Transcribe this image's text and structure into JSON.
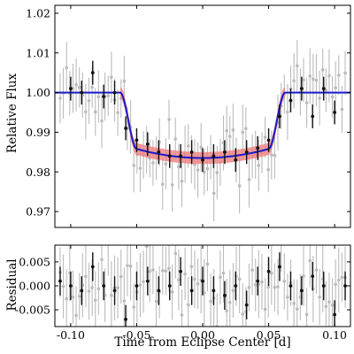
{
  "chart_data": [
    {
      "type": "line",
      "panel": "light-curve",
      "ylabel": "Relative Flux",
      "xlim": [
        -0.112,
        0.112
      ],
      "ylim": [
        0.966,
        1.022
      ],
      "yticks": [
        0.97,
        0.98,
        0.99,
        1.0,
        1.01,
        1.02
      ],
      "ytick_labels": [
        "0.97",
        "0.98",
        "0.99",
        "1.00",
        "1.01",
        "1.02"
      ],
      "transit_model": {
        "baseline": 1.0,
        "depth_center": 0.9835,
        "limb_rise": 0.0023,
        "t_full_half": 0.05,
        "t_total_half": 0.0625,
        "color": "#1a1acc",
        "band_color": "#f08080",
        "band_halfwidth": 0.0015
      },
      "binned_points": {
        "color": "#111111",
        "x": [
          -0.1,
          -0.0917,
          -0.0833,
          -0.075,
          -0.0667,
          -0.0583,
          -0.05,
          -0.0417,
          -0.0333,
          -0.025,
          -0.0167,
          -0.0083,
          0.0,
          0.0083,
          0.0167,
          0.025,
          0.0333,
          0.0417,
          0.05,
          0.0583,
          0.0667,
          0.075,
          0.0833,
          0.0917,
          0.1
        ],
        "y": [
          1.001,
          1.0,
          1.005,
          0.999,
          1.0,
          0.991,
          0.988,
          0.987,
          0.985,
          0.984,
          0.984,
          0.985,
          0.983,
          0.984,
          0.985,
          0.983,
          0.985,
          0.986,
          0.988,
          0.994,
          0.998,
          1.001,
          0.994,
          1.001,
          0.995
        ],
        "yerr": [
          0.003,
          0.003,
          0.003,
          0.003,
          0.003,
          0.003,
          0.003,
          0.003,
          0.003,
          0.003,
          0.003,
          0.003,
          0.003,
          0.003,
          0.003,
          0.003,
          0.003,
          0.003,
          0.003,
          0.003,
          0.003,
          0.003,
          0.003,
          0.003,
          0.003
        ]
      },
      "raw_points": {
        "color": "#bbbbbb",
        "x_start": -0.108,
        "x_end": 0.108,
        "count": 90,
        "yerr": 0.006,
        "scatter": 0.0045
      }
    },
    {
      "type": "line",
      "panel": "residual",
      "xlabel": "Time from Eclipse Center [d]",
      "ylabel": "Residual",
      "xlim": [
        -0.112,
        0.112
      ],
      "ylim": [
        -0.0085,
        0.0085
      ],
      "xticks": [
        -0.1,
        -0.05,
        0.0,
        0.05,
        0.1
      ],
      "xtick_labels": [
        "-0.10",
        "-0.05",
        "0.00",
        "0.05",
        "0.10"
      ],
      "yticks": [
        -0.005,
        0.0,
        0.005
      ],
      "ytick_labels": [
        "-0.005",
        "0.000",
        "0.005"
      ],
      "binned_points": {
        "color": "#111111",
        "x": [
          -0.108,
          -0.1,
          -0.0917,
          -0.0833,
          -0.075,
          -0.0667,
          -0.0583,
          -0.05,
          -0.0417,
          -0.0333,
          -0.025,
          -0.0167,
          -0.0083,
          0.0,
          0.0083,
          0.0167,
          0.025,
          0.0333,
          0.0417,
          0.05,
          0.0583,
          0.0667,
          0.075,
          0.0833,
          0.0917,
          0.1,
          0.108
        ],
        "y": [
          0.001,
          0.0,
          -0.001,
          0.004,
          0.0,
          -0.001,
          -0.007,
          0.0,
          0.001,
          -0.001,
          0.0,
          0.003,
          -0.001,
          0.001,
          -0.001,
          -0.002,
          0.0,
          -0.004,
          0.001,
          0.003,
          0.004,
          0.0,
          -0.001,
          0.002,
          0.0,
          -0.006,
          0.0
        ],
        "yerr": [
          0.003,
          0.003,
          0.003,
          0.003,
          0.003,
          0.003,
          0.003,
          0.003,
          0.003,
          0.003,
          0.003,
          0.003,
          0.003,
          0.003,
          0.003,
          0.003,
          0.003,
          0.003,
          0.003,
          0.003,
          0.003,
          0.003,
          0.003,
          0.003,
          0.003,
          0.003,
          0.003
        ]
      },
      "raw_points": {
        "color": "#bbbbbb",
        "x_start": -0.108,
        "x_end": 0.108,
        "count": 90,
        "yerr": 0.006,
        "scatter": 0.0035
      }
    }
  ]
}
